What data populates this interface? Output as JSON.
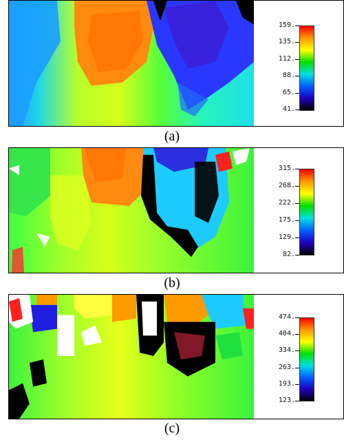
{
  "panels": [
    {
      "caption": "(a)",
      "ticks": [
        "159.",
        "135.",
        "112.",
        "88.",
        "65.",
        "41."
      ]
    },
    {
      "caption": "(b)",
      "ticks": [
        "315.",
        "268.",
        "222.",
        "175.",
        "129.",
        "82."
      ]
    },
    {
      "caption": "(c)",
      "ticks": [
        "474.",
        "404.",
        "334.",
        "263.",
        "193.",
        "123."
      ]
    }
  ],
  "colorbar_colors": [
    "#ff0000",
    "#ff9a00",
    "#ffff00",
    "#00e000",
    "#00e0e0",
    "#0060ff",
    "#2000c0",
    "#000000"
  ]
}
